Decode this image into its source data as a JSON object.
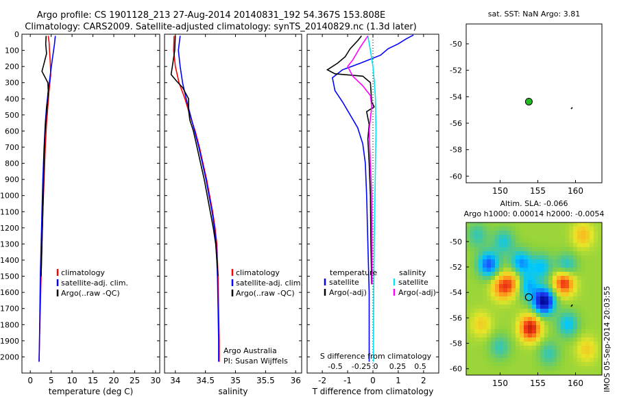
{
  "header": {
    "line1": "Argo profile: CS 1901128_213 27-Aug-2014 20140831_192 54.367S 153.808E",
    "line2": "Climatology: CARS2009. Satellite-adjusted climatology: synTS_20140829.nc (1.3d later)"
  },
  "colors": {
    "climatology": "#ff0000",
    "satellite": "#0000ff",
    "argo": "#000000",
    "cyan": "#00e5ee",
    "magenta": "#ff00ff",
    "float_marker": "#22bb22"
  },
  "chart_data": [
    {
      "id": "temperature",
      "type": "line",
      "xlabel": "temperature (deg C)",
      "ylabel": "",
      "xlim": [
        -2,
        31
      ],
      "ylim": [
        2100,
        0
      ],
      "xticks": [
        0,
        5,
        10,
        15,
        20,
        25,
        30
      ],
      "yticks": [
        0,
        100,
        200,
        300,
        400,
        500,
        600,
        700,
        800,
        900,
        1000,
        1100,
        1200,
        1300,
        1400,
        1500,
        1600,
        1700,
        1800,
        1900,
        2000
      ],
      "legend": [
        "climatology",
        "satellite-adj. clim.",
        "Argo(..raw -QC)"
      ],
      "series": [
        {
          "name": "climatology",
          "color": "#ff0000",
          "points": [
            [
              4.3,
              10
            ],
            [
              4.5,
              50
            ],
            [
              4.6,
              100
            ],
            [
              4.8,
              180
            ],
            [
              4.9,
              250
            ],
            [
              4.5,
              350
            ],
            [
              4.2,
              450
            ],
            [
              3.9,
              550
            ],
            [
              3.6,
              700
            ],
            [
              3.3,
              900
            ],
            [
              3.0,
              1100
            ],
            [
              2.8,
              1300
            ],
            [
              2.6,
              1500
            ],
            [
              2.4,
              1700
            ],
            [
              2.2,
              1900
            ],
            [
              2.1,
              2030
            ]
          ]
        },
        {
          "name": "satellite-adj. clim.",
          "color": "#0000ff",
          "points": [
            [
              6.0,
              10
            ],
            [
              5.8,
              60
            ],
            [
              5.3,
              150
            ],
            [
              4.8,
              250
            ],
            [
              4.3,
              350
            ],
            [
              3.9,
              450
            ],
            [
              3.6,
              550
            ],
            [
              3.3,
              700
            ],
            [
              3.0,
              900
            ],
            [
              2.8,
              1100
            ],
            [
              2.6,
              1300
            ],
            [
              2.4,
              1500
            ],
            [
              2.3,
              1700
            ],
            [
              2.2,
              1900
            ],
            [
              2.1,
              2030
            ]
          ]
        },
        {
          "name": "Argo(..raw -QC)",
          "color": "#000000",
          "points": [
            [
              3.8,
              10
            ],
            [
              3.7,
              60
            ],
            [
              3.9,
              120
            ],
            [
              3.3,
              180
            ],
            [
              2.8,
              230
            ],
            [
              3.6,
              270
            ],
            [
              4.2,
              300
            ],
            [
              4.3,
              350
            ],
            [
              4.2,
              400
            ],
            [
              4.0,
              450
            ],
            [
              3.8,
              520
            ],
            [
              3.5,
              620
            ],
            [
              3.3,
              750
            ],
            [
              3.2,
              900
            ],
            [
              3.0,
              1100
            ],
            [
              2.8,
              1300
            ],
            [
              2.6,
              1500
            ]
          ]
        }
      ]
    },
    {
      "id": "salinity",
      "type": "line",
      "xlabel": "salinity",
      "ylabel": "",
      "xlim": [
        33.82,
        36.1
      ],
      "ylim": [
        2100,
        0
      ],
      "xticks": [
        34,
        34.5,
        35,
        35.5,
        36
      ],
      "legend": [
        "climatology",
        "satellite-adj. clim.",
        "Argo(..raw -QC)"
      ],
      "series": [
        {
          "name": "climatology",
          "color": "#ff0000",
          "points": [
            [
              33.98,
              10
            ],
            [
              33.97,
              100
            ],
            [
              34.0,
              200
            ],
            [
              34.06,
              300
            ],
            [
              34.16,
              400
            ],
            [
              34.24,
              500
            ],
            [
              34.33,
              600
            ],
            [
              34.4,
              700
            ],
            [
              34.46,
              800
            ],
            [
              34.52,
              900
            ],
            [
              34.57,
              1000
            ],
            [
              34.62,
              1100
            ],
            [
              34.66,
              1200
            ],
            [
              34.69,
              1300
            ],
            [
              34.71,
              1500
            ],
            [
              34.72,
              1700
            ],
            [
              34.73,
              1900
            ],
            [
              34.73,
              2030
            ]
          ]
        },
        {
          "name": "satellite-adj. clim.",
          "color": "#0000ff",
          "points": [
            [
              34.08,
              10
            ],
            [
              34.05,
              100
            ],
            [
              34.08,
              200
            ],
            [
              34.12,
              300
            ],
            [
              34.18,
              400
            ],
            [
              34.25,
              500
            ],
            [
              34.32,
              600
            ],
            [
              34.39,
              700
            ],
            [
              34.45,
              800
            ],
            [
              34.51,
              900
            ],
            [
              34.56,
              1000
            ],
            [
              34.61,
              1100
            ],
            [
              34.65,
              1200
            ],
            [
              34.68,
              1300
            ],
            [
              34.7,
              1500
            ],
            [
              34.71,
              1700
            ],
            [
              34.72,
              1900
            ],
            [
              34.72,
              2030
            ]
          ]
        },
        {
          "name": "Argo(..raw -QC)",
          "color": "#000000",
          "points": [
            [
              34.0,
              10
            ],
            [
              33.99,
              100
            ],
            [
              33.95,
              200
            ],
            [
              33.93,
              250
            ],
            [
              34.02,
              290
            ],
            [
              34.12,
              330
            ],
            [
              34.22,
              400
            ],
            [
              34.22,
              470
            ],
            [
              34.24,
              530
            ],
            [
              34.3,
              600
            ],
            [
              34.36,
              700
            ],
            [
              34.42,
              800
            ],
            [
              34.48,
              900
            ],
            [
              34.53,
              1000
            ],
            [
              34.58,
              1100
            ],
            [
              34.63,
              1200
            ],
            [
              34.67,
              1300
            ],
            [
              34.69,
              1400
            ],
            [
              34.71,
              1500
            ]
          ]
        }
      ],
      "annotations": [
        "Argo Australia",
        "PI: Susan Wijffels"
      ]
    },
    {
      "id": "differences",
      "type": "line",
      "xlabel": "T difference from climatology",
      "x2label": "S difference from climatology",
      "xlim": [
        -2.6,
        2.6
      ],
      "ylim": [
        2100,
        0
      ],
      "xticks": [
        -2,
        -1,
        0,
        1,
        2
      ],
      "x2ticks": [
        "-0.5",
        "-0.25",
        "0",
        "0.25",
        "0.5"
      ],
      "legend_headers": [
        "temperature",
        "salinity"
      ],
      "legend": [
        "satellite",
        "Argo(-adj)",
        "satellite",
        "Argo(-adj)"
      ],
      "series": [
        {
          "name": "satellite",
          "group": "temperature",
          "color": "#0000ff",
          "points": [
            [
              1.6,
              5
            ],
            [
              1.3,
              30
            ],
            [
              1.0,
              60
            ],
            [
              0.6,
              90
            ],
            [
              0.3,
              130
            ],
            [
              -0.5,
              180
            ],
            [
              -1.2,
              220
            ],
            [
              -1.6,
              270
            ],
            [
              -1.5,
              350
            ],
            [
              -1.2,
              420
            ],
            [
              -0.9,
              500
            ],
            [
              -0.6,
              580
            ],
            [
              -0.4,
              680
            ],
            [
              -0.3,
              800
            ],
            [
              -0.25,
              1000
            ],
            [
              -0.2,
              1300
            ],
            [
              -0.15,
              1600
            ],
            [
              -0.15,
              2030
            ]
          ]
        },
        {
          "name": "Argo(-adj)",
          "group": "temperature",
          "color": "#000000",
          "points": [
            [
              -0.45,
              10
            ],
            [
              -0.6,
              40
            ],
            [
              -0.9,
              90
            ],
            [
              -1.1,
              140
            ],
            [
              -1.4,
              180
            ],
            [
              -1.8,
              220
            ],
            [
              -1.5,
              245
            ],
            [
              -0.4,
              260
            ],
            [
              -0.1,
              300
            ],
            [
              -0.05,
              420
            ],
            [
              0.05,
              450
            ],
            [
              -0.25,
              480
            ],
            [
              -0.15,
              560
            ],
            [
              -0.2,
              650
            ],
            [
              -0.15,
              800
            ],
            [
              -0.1,
              1000
            ],
            [
              -0.08,
              1300
            ],
            [
              -0.05,
              1550
            ]
          ]
        },
        {
          "name": "satellite",
          "group": "salinity",
          "color": "#00e5ee",
          "points": [
            [
              -0.2,
              10
            ],
            [
              -0.1,
              100
            ],
            [
              0.0,
              200
            ],
            [
              0.05,
              280
            ],
            [
              0.1,
              400
            ],
            [
              0.12,
              600
            ],
            [
              0.1,
              800
            ],
            [
              0.08,
              1000
            ],
            [
              0.05,
              1300
            ],
            [
              0.03,
              1600
            ],
            [
              0.02,
              2030
            ]
          ]
        },
        {
          "name": "Argo(-adj)",
          "group": "salinity",
          "color": "#ff00ff",
          "points": [
            [
              -0.2,
              10
            ],
            [
              -0.5,
              80
            ],
            [
              -0.8,
              160
            ],
            [
              -1.0,
              200
            ],
            [
              -0.8,
              260
            ],
            [
              -0.4,
              320
            ],
            [
              -0.1,
              380
            ],
            [
              -0.05,
              450
            ],
            [
              -0.1,
              520
            ],
            [
              -0.15,
              600
            ],
            [
              -0.1,
              800
            ],
            [
              -0.05,
              1000
            ],
            [
              -0.04,
              1300
            ],
            [
              -0.03,
              1550
            ]
          ]
        }
      ]
    },
    {
      "id": "sst-map",
      "type": "scatter",
      "title": "sat. SST: NaN Argo: 3.81",
      "xlim": [
        145.5,
        163.5
      ],
      "ylim": [
        -60.5,
        -48.5
      ],
      "xticks": [
        150,
        155,
        160
      ],
      "yticks": [
        -50,
        -52,
        -54,
        -56,
        -58,
        -60
      ],
      "points": [
        {
          "x": 153.81,
          "y": -54.37,
          "marker": "green filled circle"
        }
      ]
    },
    {
      "id": "sla-map",
      "type": "heatmap",
      "title_line1": "Altim. SLA: -0.066",
      "title_line2": "Argo h1000: 0.00014 h2000: -0.0054",
      "xlim": [
        145.5,
        163.5
      ],
      "ylim": [
        -60.5,
        -48.5
      ],
      "xticks": [
        150,
        155,
        160
      ],
      "yticks": [
        -50,
        -52,
        -54,
        -56,
        -58,
        -60
      ],
      "points": [
        {
          "x": 153.81,
          "y": -54.37,
          "marker": "black open circle"
        }
      ],
      "eddies": [
        {
          "x": 148.5,
          "y": -51.8,
          "v": 1.0
        },
        {
          "x": 150.5,
          "y": -50.0,
          "v": 0.5
        },
        {
          "x": 152.8,
          "y": -51.7,
          "v": 0.8
        },
        {
          "x": 155.5,
          "y": -52.0,
          "v": 0.6
        },
        {
          "x": 150.3,
          "y": -53.6,
          "v": -0.8
        },
        {
          "x": 151.8,
          "y": -53.2,
          "v": -0.6
        },
        {
          "x": 153.6,
          "y": -53.5,
          "v": 0.7
        },
        {
          "x": 155.8,
          "y": -54.7,
          "v": 1.6
        },
        {
          "x": 158.5,
          "y": -53.2,
          "v": -1.1
        },
        {
          "x": 158.8,
          "y": -52.0,
          "v": 0.6
        },
        {
          "x": 154.0,
          "y": -56.8,
          "v": -1.2
        },
        {
          "x": 159.0,
          "y": -56.5,
          "v": 0.6
        },
        {
          "x": 147.5,
          "y": -56.5,
          "v": -0.4
        },
        {
          "x": 150.0,
          "y": -58.3,
          "v": 0.4
        },
        {
          "x": 161.0,
          "y": -49.5,
          "v": -0.5
        },
        {
          "x": 156.5,
          "y": -58.8,
          "v": 0.4
        },
        {
          "x": 161.5,
          "y": -58.5,
          "v": -0.4
        },
        {
          "x": 147.0,
          "y": -49.5,
          "v": 0.4
        }
      ]
    }
  ],
  "side_label": "IMOS 05-Sep-2014 20:03:55"
}
